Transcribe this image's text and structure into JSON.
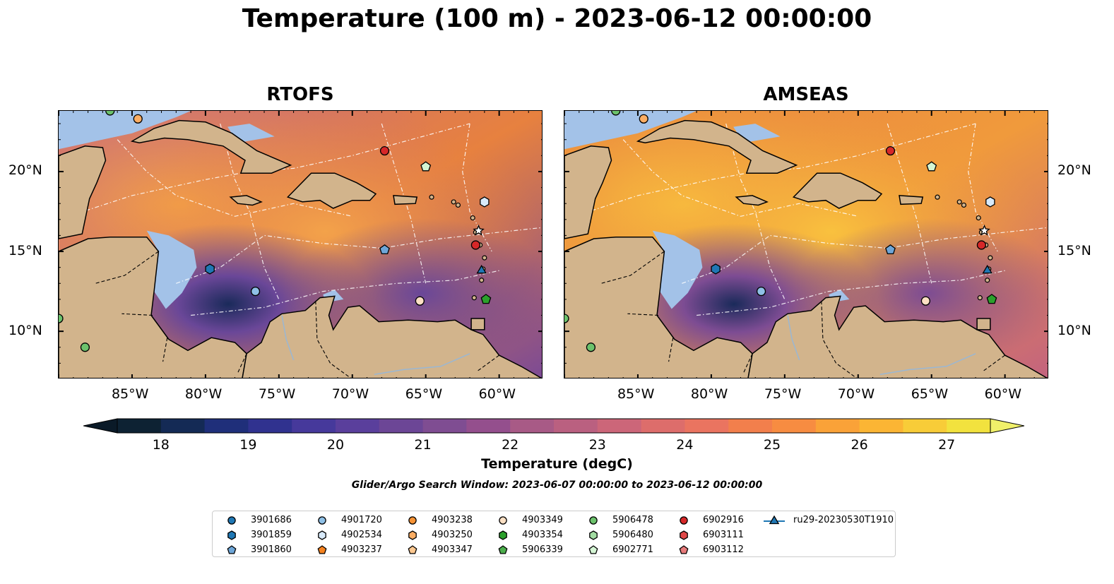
{
  "title": "Temperature (100 m) - 2023-06-12 00:00:00",
  "panels": [
    {
      "title": "RTOFS"
    },
    {
      "title": "AMSEAS"
    }
  ],
  "map": {
    "lon_range": [
      -90,
      -57
    ],
    "lat_range": [
      7,
      23.8
    ],
    "lon_ticks": [
      "85°W",
      "80°W",
      "75°W",
      "70°W",
      "65°W",
      "60°W"
    ],
    "lat_ticks": [
      "20°N",
      "15°N",
      "10°N"
    ],
    "colors": {
      "land": "#d2b48c",
      "shallow_water": "#a3c2e8",
      "coast": "#000000"
    }
  },
  "colorbar": {
    "label": "Temperature (degC)",
    "range": [
      17.5,
      27.5
    ],
    "ticks": [
      "18",
      "19",
      "20",
      "21",
      "22",
      "23",
      "24",
      "25",
      "26",
      "27"
    ],
    "colors": [
      "#0d2233",
      "#142a55",
      "#1f2f7a",
      "#30328f",
      "#46399b",
      "#5a3f9c",
      "#6c4696",
      "#7f4d92",
      "#944f8d",
      "#a85a86",
      "#ba6080",
      "#cc6679",
      "#dd6d6b",
      "#ea7460",
      "#f27f4c",
      "#f78c41",
      "#faa238",
      "#fbb534",
      "#f8cc38",
      "#f2e23e"
    ],
    "under_color": "#0a1a28",
    "over_color": "#f0f06a"
  },
  "search_window": "Glider/Argo Search Window: 2023-06-07 00:00:00 to 2023-06-12 00:00:00",
  "legend": [
    {
      "id": "3901686",
      "marker": "circle",
      "color": "#1f77b4"
    },
    {
      "id": "3901859",
      "marker": "hexagon",
      "color": "#1f77b4"
    },
    {
      "id": "3901860",
      "marker": "pentagon",
      "color": "#6ea6d8"
    },
    {
      "id": "4901720",
      "marker": "circle",
      "color": "#8fc0e6"
    },
    {
      "id": "4902534",
      "marker": "hexagon",
      "color": "#d8eafa"
    },
    {
      "id": "4903237",
      "marker": "pentagon",
      "color": "#f5821f"
    },
    {
      "id": "4903238",
      "marker": "circle",
      "color": "#f79335"
    },
    {
      "id": "4903250",
      "marker": "hexagon",
      "color": "#fbad63"
    },
    {
      "id": "4903347",
      "marker": "pentagon",
      "color": "#fdc890"
    },
    {
      "id": "4903349",
      "marker": "circle",
      "color": "#fde0c4"
    },
    {
      "id": "4903354",
      "marker": "hexagon",
      "color": "#2ca02c"
    },
    {
      "id": "5906339",
      "marker": "pentagon",
      "color": "#4cae4c"
    },
    {
      "id": "5906478",
      "marker": "circle",
      "color": "#6cc26c"
    },
    {
      "id": "5906480",
      "marker": "hexagon",
      "color": "#a2dca2"
    },
    {
      "id": "6902771",
      "marker": "pentagon",
      "color": "#d4f5d4"
    },
    {
      "id": "6902916",
      "marker": "circle",
      "color": "#d62728"
    },
    {
      "id": "6903111",
      "marker": "hexagon",
      "color": "#e04848"
    },
    {
      "id": "6903112",
      "marker": "pentagon",
      "color": "#e77b7b"
    },
    {
      "id": "ru29-20230530T1910",
      "marker": "triangle-line",
      "color": "#1f77b4"
    }
  ],
  "stations": [
    {
      "lon": -84.6,
      "lat": 23.3,
      "marker": "circle",
      "color": "#fbad63"
    },
    {
      "lon": -86.5,
      "lat": 23.8,
      "marker": "circle",
      "color": "#6cc26c"
    },
    {
      "lon": -67.8,
      "lat": 21.3,
      "marker": "circle",
      "color": "#d62728"
    },
    {
      "lon": -65.0,
      "lat": 20.3,
      "marker": "pentagon",
      "color": "#d4f5d4"
    },
    {
      "lon": -61.0,
      "lat": 18.1,
      "marker": "hexagon",
      "color": "#d8eafa"
    },
    {
      "lon": -61.4,
      "lat": 16.3,
      "marker": "star",
      "color": "#ffffff"
    },
    {
      "lon": -61.6,
      "lat": 15.4,
      "marker": "circle",
      "color": "#d62728"
    },
    {
      "lon": -67.8,
      "lat": 15.1,
      "marker": "pentagon",
      "color": "#6ea6d8"
    },
    {
      "lon": -79.7,
      "lat": 13.9,
      "marker": "hexagon",
      "color": "#1f77b4"
    },
    {
      "lon": -61.2,
      "lat": 13.8,
      "marker": "triangle",
      "color": "#1f77b4"
    },
    {
      "lon": -76.6,
      "lat": 12.5,
      "marker": "circle",
      "color": "#8fc0e6"
    },
    {
      "lon": -65.4,
      "lat": 11.9,
      "marker": "circle",
      "color": "#fde0c4"
    },
    {
      "lon": -60.9,
      "lat": 12.0,
      "marker": "pentagon",
      "color": "#2ca02c"
    },
    {
      "lon": -90.0,
      "lat": 10.8,
      "marker": "circle",
      "color": "#6cc26c"
    },
    {
      "lon": -88.2,
      "lat": 9.0,
      "marker": "circle",
      "color": "#6cc26c"
    }
  ]
}
